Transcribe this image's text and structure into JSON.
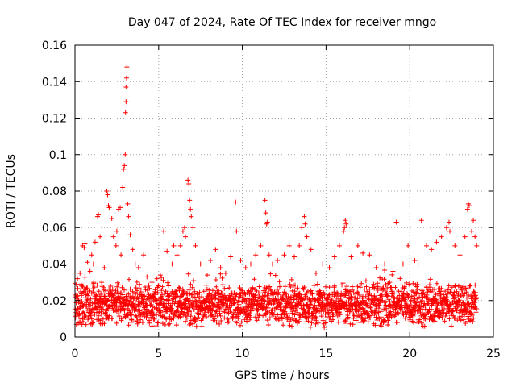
{
  "chart_data": {
    "type": "scatter",
    "title": "Day 047 of 2024, Rate Of TEC Index for receiver mngo",
    "xlabel": "GPS time / hours",
    "ylabel": "ROTI / TECUs",
    "xlim": [
      0,
      25
    ],
    "ylim": [
      0,
      0.16
    ],
    "xticks": [
      0,
      5,
      10,
      15,
      20,
      25
    ],
    "xtick_labels": [
      "0",
      "5",
      "10",
      "15",
      "20",
      "25"
    ],
    "yticks": [
      0,
      0.02,
      0.04,
      0.06,
      0.08,
      0.1,
      0.12,
      0.14,
      0.16
    ],
    "ytick_labels": [
      "0",
      "0.02",
      "0.04",
      "0.06",
      "0.08",
      "0.1",
      "0.12",
      "0.14",
      "0.16"
    ],
    "grid": true,
    "marker": "+",
    "marker_color": "#ff0000",
    "data_time_range": [
      0,
      24
    ],
    "typical_range": [
      0.005,
      0.03
    ],
    "series": [
      {
        "name": "ROTI",
        "points": [
          [
            0.05,
            0.022
          ],
          [
            0.15,
            0.032
          ],
          [
            0.3,
            0.035
          ],
          [
            0.4,
            0.028
          ],
          [
            0.45,
            0.05
          ],
          [
            0.55,
            0.049
          ],
          [
            0.6,
            0.051
          ],
          [
            0.75,
            0.041
          ],
          [
            0.9,
            0.036
          ],
          [
            1.0,
            0.045
          ],
          [
            1.1,
            0.04
          ],
          [
            1.2,
            0.052
          ],
          [
            1.35,
            0.066
          ],
          [
            1.4,
            0.067
          ],
          [
            1.5,
            0.055
          ],
          [
            1.6,
            0.03
          ],
          [
            1.75,
            0.038
          ],
          [
            1.9,
            0.08
          ],
          [
            1.95,
            0.078
          ],
          [
            2.0,
            0.072
          ],
          [
            2.05,
            0.071
          ],
          [
            2.2,
            0.065
          ],
          [
            2.3,
            0.055
          ],
          [
            2.45,
            0.05
          ],
          [
            2.5,
            0.058
          ],
          [
            2.6,
            0.07
          ],
          [
            2.7,
            0.071
          ],
          [
            2.75,
            0.045
          ],
          [
            2.85,
            0.082
          ],
          [
            2.9,
            0.092
          ],
          [
            2.95,
            0.094
          ],
          [
            3.0,
            0.1
          ],
          [
            3.02,
            0.123
          ],
          [
            3.05,
            0.129
          ],
          [
            3.05,
            0.137
          ],
          [
            3.08,
            0.142
          ],
          [
            3.1,
            0.148
          ],
          [
            3.15,
            0.073
          ],
          [
            3.2,
            0.066
          ],
          [
            3.3,
            0.056
          ],
          [
            3.45,
            0.048
          ],
          [
            3.6,
            0.04
          ],
          [
            3.8,
            0.038
          ],
          [
            4.1,
            0.045
          ],
          [
            4.3,
            0.033
          ],
          [
            4.6,
            0.03
          ],
          [
            4.9,
            0.032
          ],
          [
            5.1,
            0.034
          ],
          [
            5.3,
            0.058
          ],
          [
            5.5,
            0.047
          ],
          [
            5.8,
            0.04
          ],
          [
            5.9,
            0.05
          ],
          [
            6.1,
            0.045
          ],
          [
            6.3,
            0.05
          ],
          [
            6.45,
            0.058
          ],
          [
            6.55,
            0.06
          ],
          [
            6.6,
            0.055
          ],
          [
            6.75,
            0.086
          ],
          [
            6.8,
            0.084
          ],
          [
            6.85,
            0.075
          ],
          [
            6.9,
            0.07
          ],
          [
            6.95,
            0.066
          ],
          [
            7.05,
            0.06
          ],
          [
            7.2,
            0.05
          ],
          [
            7.5,
            0.04
          ],
          [
            7.9,
            0.034
          ],
          [
            8.1,
            0.042
          ],
          [
            8.4,
            0.048
          ],
          [
            8.7,
            0.038
          ],
          [
            9.0,
            0.035
          ],
          [
            9.3,
            0.044
          ],
          [
            9.6,
            0.074
          ],
          [
            9.65,
            0.058
          ],
          [
            9.9,
            0.042
          ],
          [
            10.2,
            0.038
          ],
          [
            10.5,
            0.04
          ],
          [
            10.8,
            0.045
          ],
          [
            11.1,
            0.05
          ],
          [
            11.35,
            0.075
          ],
          [
            11.4,
            0.068
          ],
          [
            11.45,
            0.062
          ],
          [
            11.5,
            0.063
          ],
          [
            11.6,
            0.045
          ],
          [
            11.8,
            0.04
          ],
          [
            12.1,
            0.042
          ],
          [
            12.5,
            0.045
          ],
          [
            12.8,
            0.05
          ],
          [
            13.1,
            0.044
          ],
          [
            13.4,
            0.05
          ],
          [
            13.55,
            0.06
          ],
          [
            13.7,
            0.066
          ],
          [
            13.75,
            0.062
          ],
          [
            13.85,
            0.055
          ],
          [
            14.1,
            0.048
          ],
          [
            14.4,
            0.035
          ],
          [
            14.8,
            0.04
          ],
          [
            15.2,
            0.038
          ],
          [
            15.5,
            0.044
          ],
          [
            15.8,
            0.05
          ],
          [
            16.05,
            0.058
          ],
          [
            16.1,
            0.06
          ],
          [
            16.15,
            0.064
          ],
          [
            16.2,
            0.062
          ],
          [
            16.5,
            0.044
          ],
          [
            16.9,
            0.05
          ],
          [
            17.2,
            0.046
          ],
          [
            17.6,
            0.045
          ],
          [
            18.0,
            0.038
          ],
          [
            18.5,
            0.04
          ],
          [
            18.8,
            0.03
          ],
          [
            19.0,
            0.036
          ],
          [
            19.2,
            0.063
          ],
          [
            19.6,
            0.04
          ],
          [
            19.9,
            0.05
          ],
          [
            20.3,
            0.042
          ],
          [
            20.5,
            0.04
          ],
          [
            20.7,
            0.064
          ],
          [
            21.0,
            0.05
          ],
          [
            21.3,
            0.048
          ],
          [
            21.6,
            0.052
          ],
          [
            21.9,
            0.055
          ],
          [
            22.2,
            0.06
          ],
          [
            22.35,
            0.063
          ],
          [
            22.4,
            0.058
          ],
          [
            22.7,
            0.05
          ],
          [
            23.0,
            0.045
          ],
          [
            23.3,
            0.055
          ],
          [
            23.45,
            0.07
          ],
          [
            23.5,
            0.073
          ],
          [
            23.55,
            0.072
          ],
          [
            23.7,
            0.058
          ],
          [
            23.8,
            0.064
          ],
          [
            23.9,
            0.055
          ],
          [
            24.0,
            0.05
          ]
        ]
      }
    ]
  }
}
